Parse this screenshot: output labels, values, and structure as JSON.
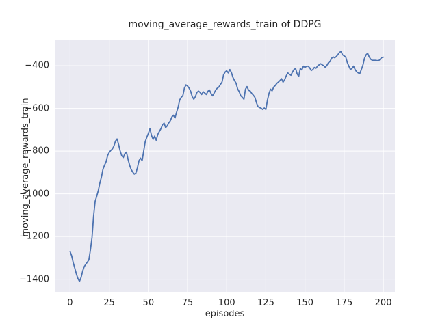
{
  "chart_data": {
    "type": "line",
    "title": "moving_average_rewards_train of DDPG",
    "xlabel": "episodes",
    "ylabel": "moving_average_rewards_train",
    "xticks": [
      0,
      25,
      50,
      75,
      100,
      125,
      150,
      175,
      200
    ],
    "yticks": [
      -400,
      -600,
      -800,
      -1000,
      -1200,
      -1400
    ],
    "xlim": [
      -9.8,
      207.4
    ],
    "ylim": [
      -1462,
      -278
    ],
    "grid": true,
    "legend": null,
    "colors": {
      "line": "#4c72b0",
      "plot_background": "#eaeaf2",
      "gridline": "#ffffff",
      "text": "#262626",
      "figure_background": "#ffffff"
    },
    "x": [
      0,
      1,
      2,
      3,
      4,
      5,
      6,
      7,
      8,
      9,
      10,
      11,
      12,
      13,
      14,
      15,
      16,
      17,
      18,
      19,
      20,
      21,
      22,
      23,
      24,
      25,
      26,
      27,
      28,
      29,
      30,
      31,
      32,
      33,
      34,
      35,
      36,
      37,
      38,
      39,
      40,
      41,
      42,
      43,
      44,
      45,
      46,
      47,
      48,
      49,
      50,
      51,
      52,
      53,
      54,
      55,
      56,
      57,
      58,
      59,
      60,
      61,
      62,
      63,
      64,
      65,
      66,
      67,
      68,
      69,
      70,
      71,
      72,
      73,
      74,
      75,
      76,
      77,
      78,
      79,
      80,
      81,
      82,
      83,
      84,
      85,
      86,
      87,
      88,
      89,
      90,
      91,
      92,
      93,
      94,
      95,
      96,
      97,
      98,
      99,
      100,
      101,
      102,
      103,
      104,
      105,
      106,
      107,
      108,
      109,
      110,
      111,
      112,
      113,
      114,
      115,
      116,
      117,
      118,
      119,
      120,
      121,
      122,
      123,
      124,
      125,
      126,
      127,
      128,
      129,
      130,
      131,
      132,
      133,
      134,
      135,
      136,
      137,
      138,
      139,
      140,
      141,
      142,
      143,
      144,
      145,
      146,
      147,
      148,
      149,
      150,
      151,
      152,
      153,
      154,
      155,
      156,
      157,
      158,
      159,
      160,
      161,
      162,
      163,
      164,
      165,
      166,
      167,
      168,
      169,
      170,
      171,
      172,
      173,
      174,
      175,
      176,
      177,
      178,
      179,
      180,
      181,
      182,
      183,
      184,
      185,
      186,
      187,
      188,
      189,
      190,
      191,
      192,
      193,
      194,
      195,
      196,
      197,
      198,
      199,
      200
    ],
    "y": [
      -1270,
      -1290,
      -1322,
      -1348,
      -1375,
      -1397,
      -1410,
      -1392,
      -1363,
      -1341,
      -1330,
      -1320,
      -1309,
      -1262,
      -1205,
      -1105,
      -1035,
      -1012,
      -985,
      -950,
      -922,
      -885,
      -866,
      -850,
      -820,
      -806,
      -797,
      -790,
      -776,
      -753,
      -743,
      -770,
      -800,
      -822,
      -830,
      -812,
      -805,
      -838,
      -866,
      -886,
      -898,
      -908,
      -903,
      -878,
      -845,
      -833,
      -845,
      -800,
      -755,
      -735,
      -717,
      -695,
      -727,
      -745,
      -730,
      -749,
      -722,
      -708,
      -695,
      -677,
      -669,
      -690,
      -682,
      -668,
      -658,
      -640,
      -632,
      -645,
      -618,
      -594,
      -560,
      -548,
      -540,
      -505,
      -490,
      -495,
      -505,
      -520,
      -545,
      -557,
      -545,
      -525,
      -519,
      -525,
      -535,
      -522,
      -528,
      -535,
      -520,
      -514,
      -530,
      -541,
      -528,
      -514,
      -505,
      -500,
      -488,
      -477,
      -443,
      -430,
      -424,
      -434,
      -418,
      -432,
      -455,
      -470,
      -482,
      -509,
      -522,
      -541,
      -548,
      -557,
      -510,
      -498,
      -515,
      -519,
      -530,
      -538,
      -548,
      -573,
      -592,
      -596,
      -599,
      -605,
      -598,
      -605,
      -562,
      -530,
      -510,
      -518,
      -500,
      -493,
      -483,
      -477,
      -470,
      -461,
      -477,
      -466,
      -448,
      -434,
      -440,
      -445,
      -430,
      -418,
      -413,
      -439,
      -450,
      -413,
      -420,
      -402,
      -408,
      -403,
      -402,
      -410,
      -423,
      -418,
      -408,
      -412,
      -402,
      -396,
      -391,
      -396,
      -400,
      -408,
      -398,
      -386,
      -380,
      -365,
      -359,
      -363,
      -357,
      -348,
      -338,
      -333,
      -349,
      -354,
      -359,
      -385,
      -402,
      -418,
      -413,
      -402,
      -418,
      -429,
      -434,
      -437,
      -418,
      -397,
      -365,
      -349,
      -342,
      -359,
      -370,
      -375,
      -375,
      -375,
      -376,
      -377,
      -370,
      -362,
      -360
    ]
  }
}
